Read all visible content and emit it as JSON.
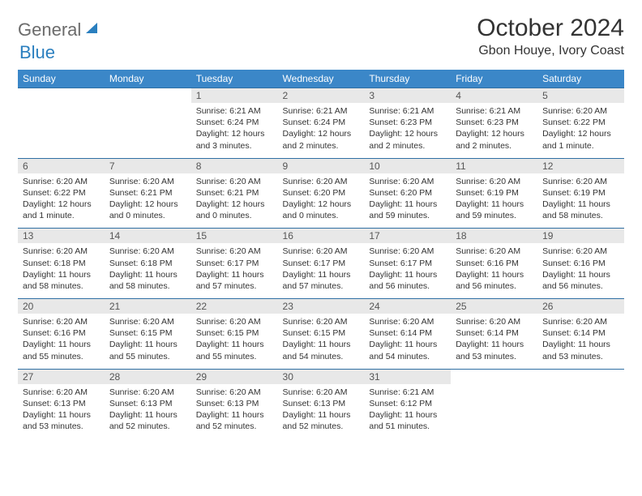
{
  "logo": {
    "text1": "General",
    "text2": "Blue"
  },
  "title": "October 2024",
  "location": "Gbon Houye, Ivory Coast",
  "header_bg": "#3b87c8",
  "header_text_color": "#ffffff",
  "daynum_bg": "#e8e8e8",
  "row_border_color": "#2f6fa3",
  "weekdays": [
    "Sunday",
    "Monday",
    "Tuesday",
    "Wednesday",
    "Thursday",
    "Friday",
    "Saturday"
  ],
  "weeks": [
    [
      {
        "empty": true
      },
      {
        "empty": true
      },
      {
        "n": "1",
        "sunrise": "6:21 AM",
        "sunset": "6:24 PM",
        "daylight": "12 hours and 3 minutes."
      },
      {
        "n": "2",
        "sunrise": "6:21 AM",
        "sunset": "6:24 PM",
        "daylight": "12 hours and 2 minutes."
      },
      {
        "n": "3",
        "sunrise": "6:21 AM",
        "sunset": "6:23 PM",
        "daylight": "12 hours and 2 minutes."
      },
      {
        "n": "4",
        "sunrise": "6:21 AM",
        "sunset": "6:23 PM",
        "daylight": "12 hours and 2 minutes."
      },
      {
        "n": "5",
        "sunrise": "6:20 AM",
        "sunset": "6:22 PM",
        "daylight": "12 hours and 1 minute."
      }
    ],
    [
      {
        "n": "6",
        "sunrise": "6:20 AM",
        "sunset": "6:22 PM",
        "daylight": "12 hours and 1 minute."
      },
      {
        "n": "7",
        "sunrise": "6:20 AM",
        "sunset": "6:21 PM",
        "daylight": "12 hours and 0 minutes."
      },
      {
        "n": "8",
        "sunrise": "6:20 AM",
        "sunset": "6:21 PM",
        "daylight": "12 hours and 0 minutes."
      },
      {
        "n": "9",
        "sunrise": "6:20 AM",
        "sunset": "6:20 PM",
        "daylight": "12 hours and 0 minutes."
      },
      {
        "n": "10",
        "sunrise": "6:20 AM",
        "sunset": "6:20 PM",
        "daylight": "11 hours and 59 minutes."
      },
      {
        "n": "11",
        "sunrise": "6:20 AM",
        "sunset": "6:19 PM",
        "daylight": "11 hours and 59 minutes."
      },
      {
        "n": "12",
        "sunrise": "6:20 AM",
        "sunset": "6:19 PM",
        "daylight": "11 hours and 58 minutes."
      }
    ],
    [
      {
        "n": "13",
        "sunrise": "6:20 AM",
        "sunset": "6:18 PM",
        "daylight": "11 hours and 58 minutes."
      },
      {
        "n": "14",
        "sunrise": "6:20 AM",
        "sunset": "6:18 PM",
        "daylight": "11 hours and 58 minutes."
      },
      {
        "n": "15",
        "sunrise": "6:20 AM",
        "sunset": "6:17 PM",
        "daylight": "11 hours and 57 minutes."
      },
      {
        "n": "16",
        "sunrise": "6:20 AM",
        "sunset": "6:17 PM",
        "daylight": "11 hours and 57 minutes."
      },
      {
        "n": "17",
        "sunrise": "6:20 AM",
        "sunset": "6:17 PM",
        "daylight": "11 hours and 56 minutes."
      },
      {
        "n": "18",
        "sunrise": "6:20 AM",
        "sunset": "6:16 PM",
        "daylight": "11 hours and 56 minutes."
      },
      {
        "n": "19",
        "sunrise": "6:20 AM",
        "sunset": "6:16 PM",
        "daylight": "11 hours and 56 minutes."
      }
    ],
    [
      {
        "n": "20",
        "sunrise": "6:20 AM",
        "sunset": "6:16 PM",
        "daylight": "11 hours and 55 minutes."
      },
      {
        "n": "21",
        "sunrise": "6:20 AM",
        "sunset": "6:15 PM",
        "daylight": "11 hours and 55 minutes."
      },
      {
        "n": "22",
        "sunrise": "6:20 AM",
        "sunset": "6:15 PM",
        "daylight": "11 hours and 55 minutes."
      },
      {
        "n": "23",
        "sunrise": "6:20 AM",
        "sunset": "6:15 PM",
        "daylight": "11 hours and 54 minutes."
      },
      {
        "n": "24",
        "sunrise": "6:20 AM",
        "sunset": "6:14 PM",
        "daylight": "11 hours and 54 minutes."
      },
      {
        "n": "25",
        "sunrise": "6:20 AM",
        "sunset": "6:14 PM",
        "daylight": "11 hours and 53 minutes."
      },
      {
        "n": "26",
        "sunrise": "6:20 AM",
        "sunset": "6:14 PM",
        "daylight": "11 hours and 53 minutes."
      }
    ],
    [
      {
        "n": "27",
        "sunrise": "6:20 AM",
        "sunset": "6:13 PM",
        "daylight": "11 hours and 53 minutes."
      },
      {
        "n": "28",
        "sunrise": "6:20 AM",
        "sunset": "6:13 PM",
        "daylight": "11 hours and 52 minutes."
      },
      {
        "n": "29",
        "sunrise": "6:20 AM",
        "sunset": "6:13 PM",
        "daylight": "11 hours and 52 minutes."
      },
      {
        "n": "30",
        "sunrise": "6:20 AM",
        "sunset": "6:13 PM",
        "daylight": "11 hours and 52 minutes."
      },
      {
        "n": "31",
        "sunrise": "6:21 AM",
        "sunset": "6:12 PM",
        "daylight": "11 hours and 51 minutes."
      },
      {
        "empty": true
      },
      {
        "empty": true
      }
    ]
  ],
  "labels": {
    "sunrise": "Sunrise:",
    "sunset": "Sunset:",
    "daylight": "Daylight:"
  }
}
